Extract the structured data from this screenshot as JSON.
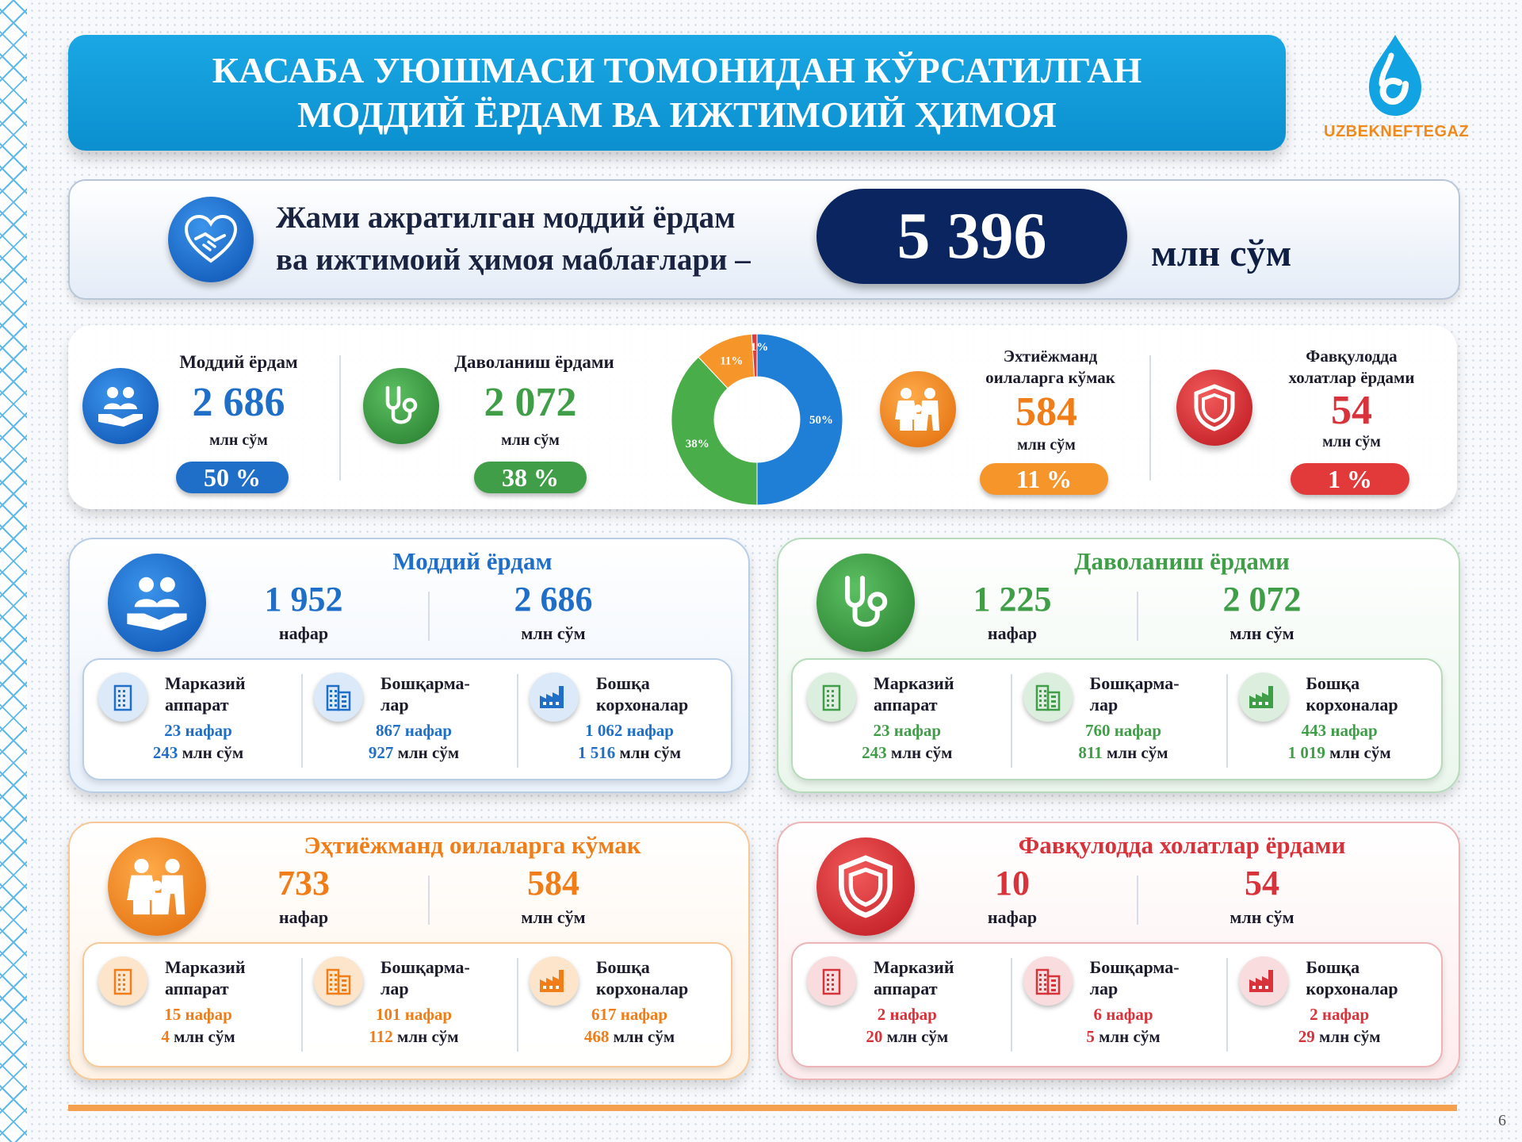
{
  "title": {
    "line1": "КАСАБА УЮШМАСИ ТОМОНИДАН КЎРСАТИЛГАН",
    "line2": "МОДДИЙ ЁРДАМ ВА ИЖТИМОИЙ ҲИМОЯ"
  },
  "logo": {
    "text": "UZBEKNEFTEGAZ"
  },
  "total": {
    "label_line1": "Жами ажратилган моддий ёрдам",
    "label_line2": "ва ижтимоий ҳимоя маблағлари –",
    "value": "5 396",
    "unit": "млн сўм"
  },
  "summary": {
    "material": {
      "label": "Моддий ёрдам",
      "value": "2 686",
      "unit": "млн сўм",
      "percent": "50 %"
    },
    "treatment": {
      "label": "Даволаниш ёрдами",
      "value": "2 072",
      "unit": "млн сўм",
      "percent": "38 %"
    },
    "families": {
      "label_line1": "Эхтиёжманд",
      "label_line2": "оилаларга кўмак",
      "value": "584",
      "unit": "млн сўм",
      "percent": "11 %"
    },
    "emergency": {
      "label_line1": "Фавқулодда",
      "label_line2": "холатлар ёрдами",
      "value": "54",
      "unit": "млн сўм",
      "percent": "1 %"
    }
  },
  "chart_data": {
    "type": "pie",
    "categories": [
      "Моддий ёрдам",
      "Даволаниш ёрдами",
      "Эхтиёжманд оилаларга кўмак",
      "Фавқулодда холатлар ёрдами"
    ],
    "values": [
      50,
      38,
      11,
      1
    ],
    "labels": [
      "50%",
      "38%",
      "11%",
      "1%"
    ],
    "colors": [
      "#1f7fd6",
      "#49ad4a",
      "#f5952a",
      "#e23a3a"
    ]
  },
  "cards": [
    {
      "title": "Моддий ёрдам",
      "count": "1 952",
      "count_unit": "нафар",
      "sum": "2 686",
      "sum_unit": "млн сўм",
      "color": "#1f6fc9",
      "items": [
        {
          "label_line1": "Марказий",
          "label_line2": "аппарат",
          "count": "23",
          "count_unit": "нафар",
          "sum": "243",
          "sum_unit": "млн сўм"
        },
        {
          "label_line1": "Бошқарма-",
          "label_line2": "лар",
          "count": "867",
          "count_unit": "нафар",
          "sum": "927",
          "sum_unit": "млн сўм"
        },
        {
          "label_line1": "Бошқа",
          "label_line2": "корхоналар",
          "count": "1 062",
          "count_unit": "нафар",
          "sum": "1 516",
          "sum_unit": "млн сўм"
        }
      ]
    },
    {
      "title": "Даволаниш ёрдами",
      "count": "1 225",
      "count_unit": "нафар",
      "sum": "2 072",
      "sum_unit": "млн сўм",
      "color": "#3f9e47",
      "items": [
        {
          "label_line1": "Марказий",
          "label_line2": "аппарат",
          "count": "23",
          "count_unit": "нафар",
          "sum": "243",
          "sum_unit": "млн сўм"
        },
        {
          "label_line1": "Бошқарма-",
          "label_line2": "лар",
          "count": "760",
          "count_unit": "нафар",
          "sum": "811",
          "sum_unit": "млн сўм"
        },
        {
          "label_line1": "Бошқа",
          "label_line2": "корхоналар",
          "count": "443",
          "count_unit": "нафар",
          "sum": "1 019",
          "sum_unit": "млн сўм"
        }
      ]
    },
    {
      "title": "Эҳтиёжманд оилаларга кўмак",
      "count": "733",
      "count_unit": "нафар",
      "sum": "584",
      "sum_unit": "млн сўм",
      "color": "#f07d18",
      "items": [
        {
          "label_line1": "Марказий",
          "label_line2": "аппарат",
          "count": "15",
          "count_unit": "нафар",
          "sum": "4",
          "sum_unit": "млн сўм"
        },
        {
          "label_line1": "Бошқарма-",
          "label_line2": "лар",
          "count": "101",
          "count_unit": "нафар",
          "sum": "112",
          "sum_unit": "млн сўм"
        },
        {
          "label_line1": "Бошқа",
          "label_line2": "корхоналар",
          "count": "617",
          "count_unit": "нафар",
          "sum": "468",
          "sum_unit": "млн сўм"
        }
      ]
    },
    {
      "title": "Фавқулодда холатлар ёрдами",
      "count": "10",
      "count_unit": "нафар",
      "sum": "54",
      "sum_unit": "млн сўм",
      "color": "#d8323a",
      "items": [
        {
          "label_line1": "Марказий",
          "label_line2": "аппарат",
          "count": "2",
          "count_unit": "нафар",
          "sum": "20",
          "sum_unit": "млн сўм"
        },
        {
          "label_line1": "Бошқарма-",
          "label_line2": "лар",
          "count": "6",
          "count_unit": "нафар",
          "sum": "5",
          "sum_unit": "млн сўм"
        },
        {
          "label_line1": "Бошқа",
          "label_line2": "корхоналар",
          "count": "2",
          "count_unit": "нафар",
          "sum": "29",
          "sum_unit": "млн сўм"
        }
      ]
    }
  ],
  "page_number": "6"
}
